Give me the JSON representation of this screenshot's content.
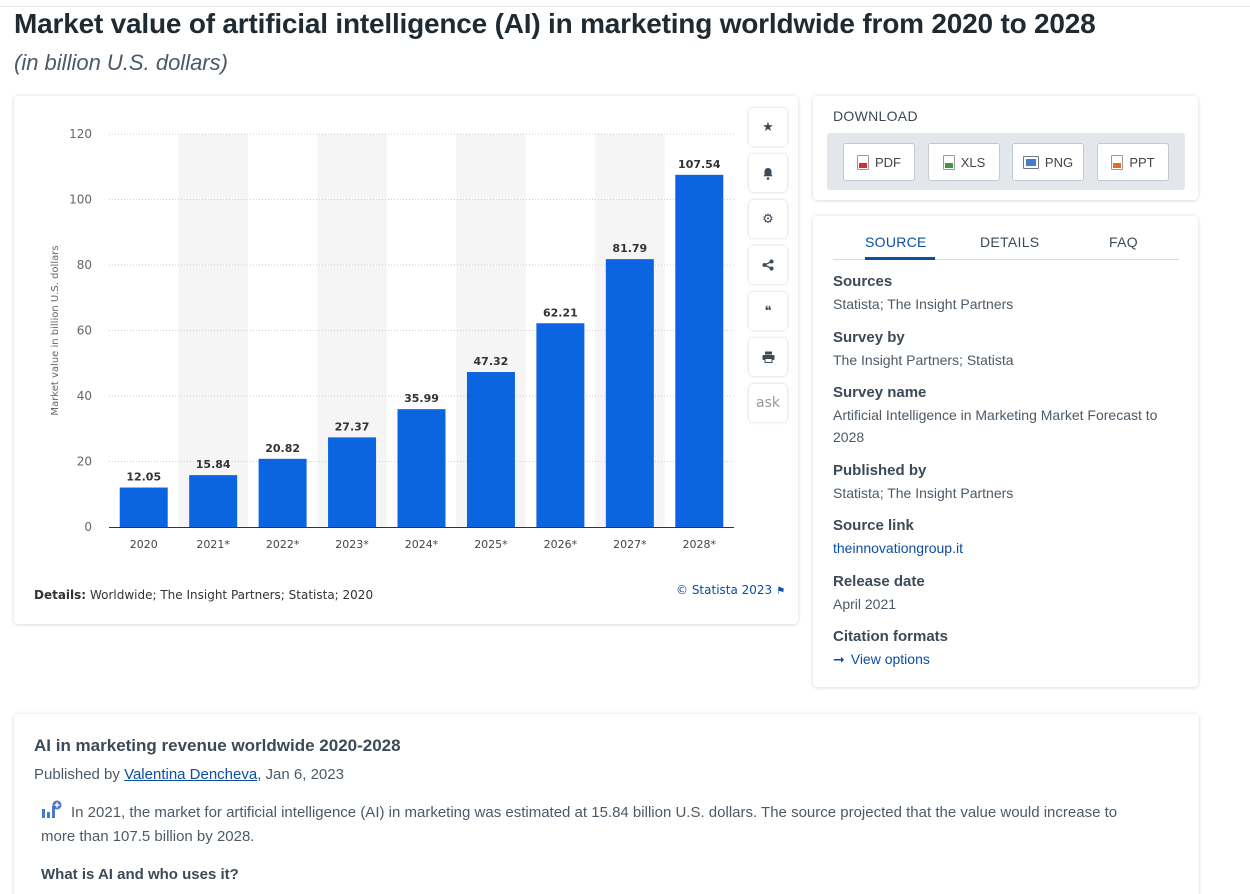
{
  "page": {
    "title": "Market value of artificial intelligence (AI) in marketing worldwide from 2020 to 2028",
    "subtitle": "(in billion U.S. dollars)"
  },
  "chart_data": {
    "type": "bar",
    "categories": [
      "2020",
      "2021*",
      "2022*",
      "2023*",
      "2024*",
      "2025*",
      "2026*",
      "2027*",
      "2028*"
    ],
    "values": [
      12.05,
      15.84,
      20.82,
      27.37,
      35.99,
      47.32,
      62.21,
      81.79,
      107.54
    ],
    "data_labels": [
      "12.05",
      "15.84",
      "20.82",
      "27.37",
      "35.99",
      "47.32",
      "62.21",
      "81.79",
      "107.54"
    ],
    "ylabel": "Market value in billion U.S. dollars",
    "xlabel": "",
    "ylim": [
      0,
      120
    ],
    "yticks": [
      "0",
      "20",
      "40",
      "60",
      "80",
      "100",
      "120"
    ],
    "grid": true,
    "bar_color": "#0b65e0"
  },
  "chart_footer": {
    "details_label": "Details:",
    "details_text": "Worldwide; The Insight Partners; Statista; 2020",
    "copyright": "© Statista 2023"
  },
  "tools": [
    {
      "name": "star-icon",
      "glyph": "★"
    },
    {
      "name": "bell-icon",
      "glyph": "🔔"
    },
    {
      "name": "gear-icon",
      "glyph": "⚙"
    },
    {
      "name": "share-icon",
      "glyph": "<"
    },
    {
      "name": "quote-icon",
      "glyph": "❝"
    },
    {
      "name": "print-icon",
      "glyph": "⎙"
    },
    {
      "name": "ask-icon",
      "glyph": "ask"
    }
  ],
  "download": {
    "title": "DOWNLOAD",
    "buttons": [
      "PDF",
      "XLS",
      "PNG",
      "PPT"
    ]
  },
  "source_tabs": [
    "SOURCE",
    "DETAILS",
    "FAQ"
  ],
  "source": {
    "sources_label": "Sources",
    "sources_value": "Statista; The Insight Partners",
    "survey_by_label": "Survey by",
    "survey_by_value": "The Insight Partners; Statista",
    "survey_name_label": "Survey name",
    "survey_name_value": "Artificial Intelligence in Marketing Market Forecast to 2028",
    "published_by_label": "Published by",
    "published_by_value": "Statista; The Insight Partners",
    "source_link_label": "Source link",
    "source_link_value": "theinnovationgroup.it",
    "release_date_label": "Release date",
    "release_date_value": "April 2021",
    "citation_label": "Citation formats",
    "citation_value": "View options"
  },
  "article": {
    "title": "AI in marketing revenue worldwide 2020-2028",
    "published_prefix": "Published by ",
    "author": "Valentina Dencheva",
    "date": ", Jan 6, 2023",
    "body": "In 2021, the market for artificial intelligence (AI) in marketing was estimated at 15.84 billion U.S. dollars. The source projected that the value would increase to more than 107.5 billion by 2028.",
    "heading": "What is AI and who uses it?"
  }
}
